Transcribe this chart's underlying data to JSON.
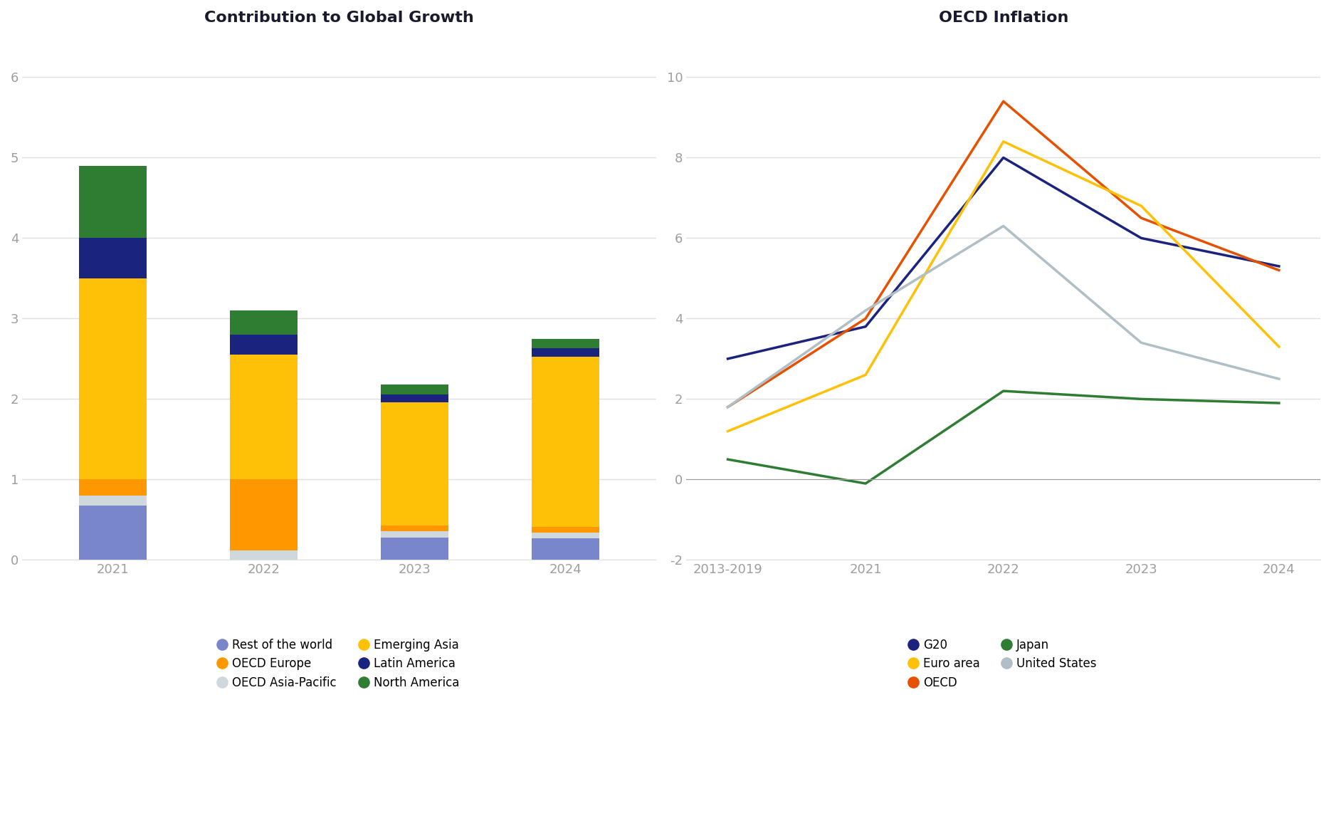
{
  "bar_title": "Contribution to Global Growth",
  "line_title": "OECD Inflation",
  "bar_categories": [
    "2021",
    "2022",
    "2023",
    "2024"
  ],
  "bar_segments": {
    "Rest of the world": [
      0.68,
      0.0,
      0.28,
      0.27
    ],
    "OECD Asia-Pacific": [
      0.12,
      0.12,
      0.08,
      0.07
    ],
    "OECD Europe": [
      0.2,
      0.88,
      0.07,
      0.07
    ],
    "Emerging Asia": [
      2.5,
      1.55,
      1.53,
      2.12
    ],
    "Latin America": [
      0.5,
      0.25,
      0.1,
      0.1
    ],
    "North America": [
      0.9,
      0.3,
      0.12,
      0.12
    ]
  },
  "bar_colors": {
    "Rest of the world": "#7986CB",
    "OECD Asia-Pacific": "#CFD8DC",
    "OECD Europe": "#FF9800",
    "Emerging Asia": "#FFC107",
    "Latin America": "#1A237E",
    "North America": "#2E7D32"
  },
  "bar_ylim": [
    0,
    6.5
  ],
  "bar_yticks": [
    0,
    1,
    2,
    3,
    4,
    5,
    6
  ],
  "line_x": [
    0,
    1,
    2,
    3,
    4
  ],
  "line_xlabels": [
    "2013-2019",
    "2021",
    "2022",
    "2023",
    "2024"
  ],
  "line_ylim": [
    -2,
    11
  ],
  "line_yticks": [
    -2,
    0,
    2,
    4,
    6,
    8,
    10
  ],
  "line_series": {
    "G20": [
      3.0,
      3.8,
      8.0,
      6.0,
      5.3
    ],
    "OECD": [
      1.8,
      4.0,
      9.4,
      6.5,
      5.2
    ],
    "Euro area": [
      1.2,
      2.6,
      8.4,
      6.8,
      3.3
    ],
    "Japan": [
      0.5,
      -0.1,
      2.2,
      2.0,
      1.9
    ],
    "United States": [
      1.8,
      4.2,
      6.3,
      3.4,
      2.5
    ]
  },
  "line_colors": {
    "G20": "#1A237E",
    "OECD": "#E65100",
    "Euro area": "#FFC107",
    "Japan": "#2E7D32",
    "United States": "#B0BEC5"
  },
  "bar_legend_left_col": [
    "Rest of the world",
    "OECD Asia-Pacific",
    "Latin America"
  ],
  "bar_legend_right_col": [
    "OECD Europe",
    "Emerging Asia",
    "North America"
  ],
  "line_legend_left_col": [
    "G20",
    "OECD",
    "United States"
  ],
  "line_legend_right_col": [
    "Euro area",
    "Japan"
  ],
  "background_color": "#FFFFFF",
  "title_fontsize": 16,
  "tick_color": "#9E9E9E",
  "grid_color": "#E0E0E0"
}
